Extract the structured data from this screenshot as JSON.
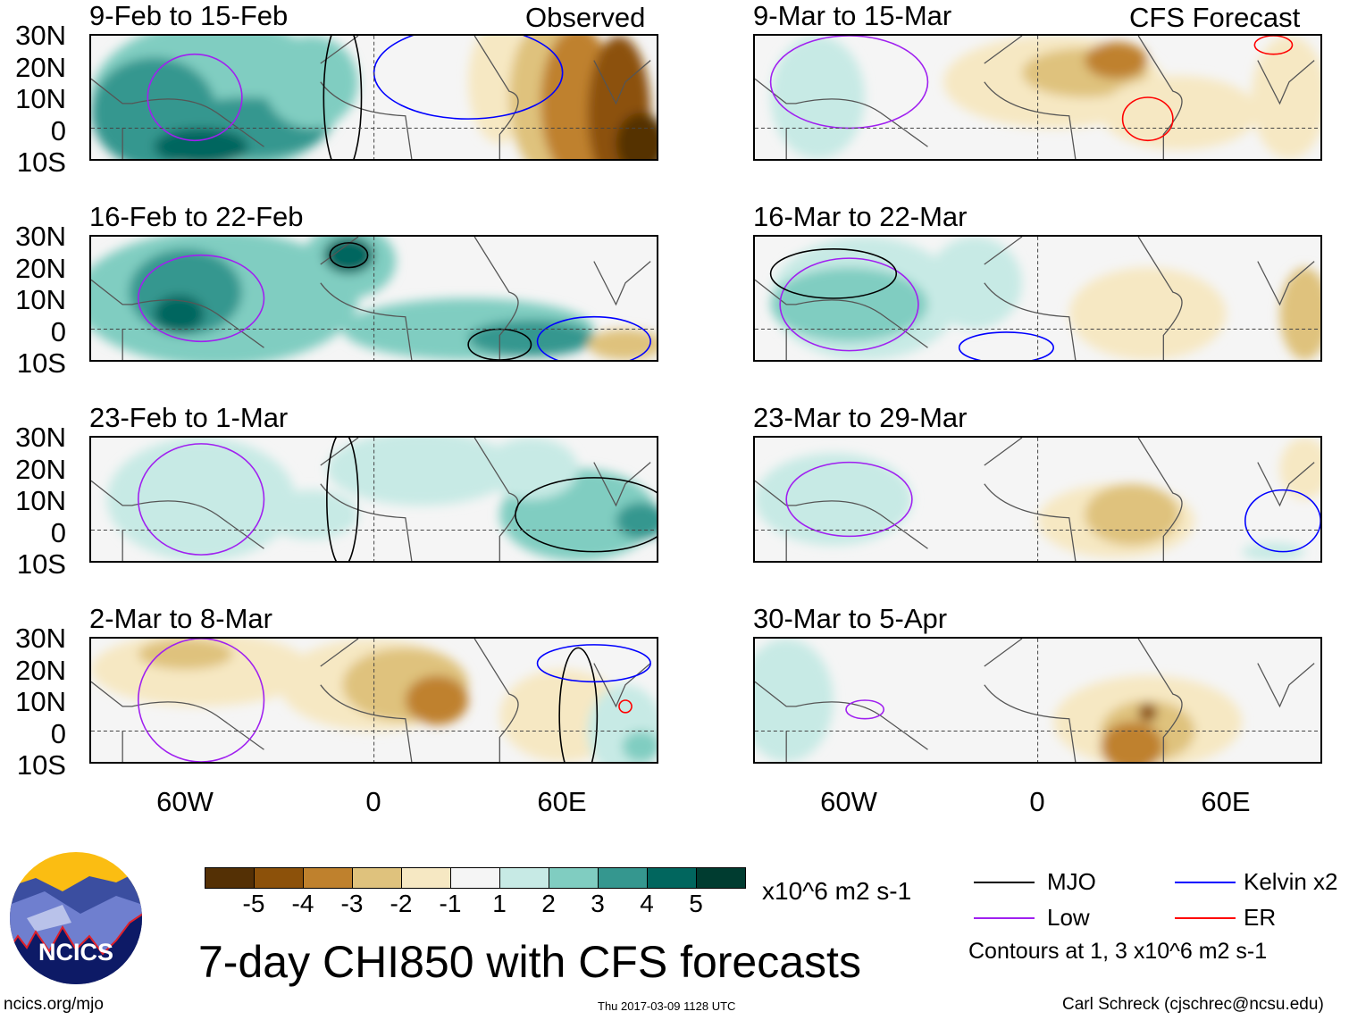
{
  "labels": {
    "observed": "Observed",
    "forecast": "CFS Forecast"
  },
  "lat_ticks": [
    "30N",
    "20N",
    "10N",
    "0",
    "10S"
  ],
  "lon_ticks": [
    "60W",
    "0",
    "60E"
  ],
  "panels_left": [
    {
      "title": "9-Feb to 15-Feb"
    },
    {
      "title": "16-Feb to 22-Feb"
    },
    {
      "title": "23-Feb to 1-Mar"
    },
    {
      "title": "2-Mar to 8-Mar"
    }
  ],
  "panels_right": [
    {
      "title": "9-Mar to 15-Mar"
    },
    {
      "title": "16-Mar to 22-Mar"
    },
    {
      "title": "23-Mar to 29-Mar"
    },
    {
      "title": "30-Mar to 5-Apr"
    }
  ],
  "colorbar": {
    "colors": [
      "#543005",
      "#8c510a",
      "#bf812d",
      "#dfc27d",
      "#f6e8c3",
      "#f5f5f5",
      "#c7eae5",
      "#80cdc1",
      "#35978f",
      "#01665e",
      "#003c30"
    ],
    "labels": [
      "-5",
      "-4",
      "-3",
      "-2",
      "-1",
      "1",
      "2",
      "3",
      "4",
      "5"
    ],
    "units": "x10^6 m2 s-1"
  },
  "legend": {
    "items": [
      {
        "label": "MJO",
        "color": "#000000"
      },
      {
        "label": "Kelvin x2",
        "color": "#0000ff"
      },
      {
        "label": "Low",
        "color": "#a020f0"
      },
      {
        "label": "ER",
        "color": "#ff0000"
      }
    ],
    "contours_note": "Contours at 1, 3 x10^6 m2 s-1"
  },
  "title": "7-day CHI850 with CFS forecasts",
  "logo_text": "NCICS",
  "footer": {
    "left": "ncics.org/mjo",
    "center": "Thu 2017-03-09 1128 UTC",
    "right": "Carl Schreck (cjschrec@ncsu.edu)"
  }
}
